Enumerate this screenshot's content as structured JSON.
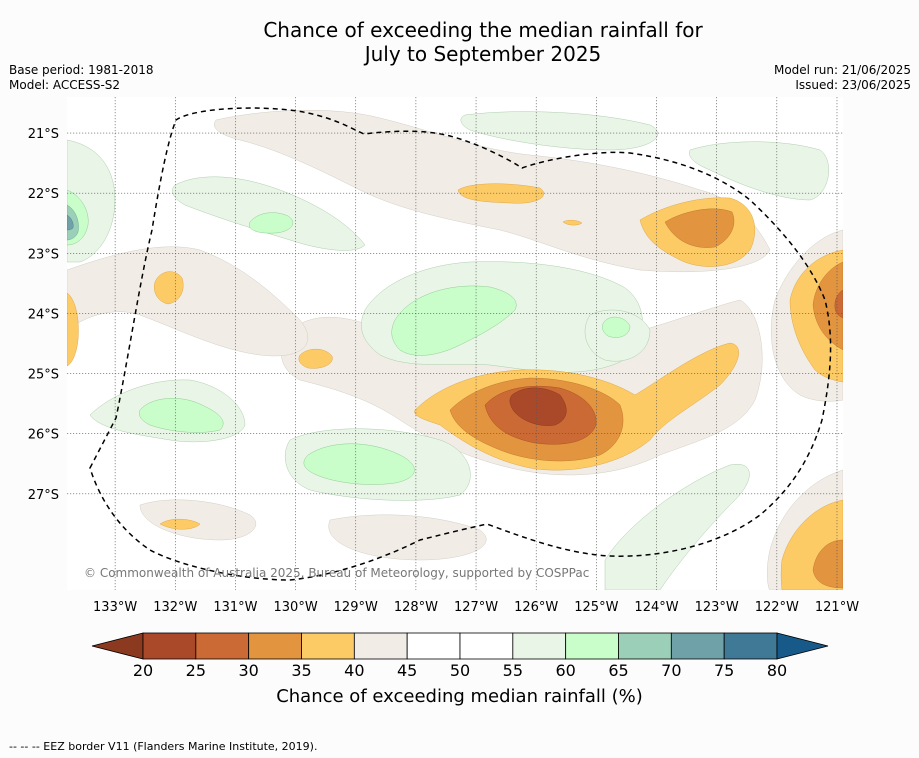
{
  "header": {
    "title_line1": "Chance of exceeding the median rainfall for",
    "title_line2": "July to September 2025",
    "base_period": "Base period: 1981-2018",
    "model": "Model: ACCESS-S2",
    "model_run": "Model run: 21/06/2025",
    "issued": "Issued: 23/06/2025"
  },
  "map": {
    "copyright": "© Commonwealth of Australia 2025, Bureau of Meteorology, supported by COSPPac",
    "eez_note": "--  --  -- EEZ border V11 (Flanders Marine Institute, 2019)."
  },
  "chart_data": {
    "type": "heatmap",
    "title": "Chance of exceeding the median rainfall for July to September 2025",
    "x_axis": {
      "ticks": [
        "133°W",
        "132°W",
        "131°W",
        "130°W",
        "129°W",
        "128°W",
        "127°W",
        "126°W",
        "125°W",
        "124°W",
        "123°W",
        "122°W",
        "121°W"
      ],
      "values": [
        -133,
        -132,
        -131,
        -130,
        -129,
        -128,
        -127,
        -126,
        -125,
        -124,
        -123,
        -122,
        -121
      ],
      "range": [
        -133.8,
        -120.9
      ]
    },
    "y_axis": {
      "ticks": [
        "21°S",
        "22°S",
        "23°S",
        "24°S",
        "25°S",
        "26°S",
        "27°S"
      ],
      "values": [
        -21,
        -22,
        -23,
        -24,
        -25,
        -26,
        -27
      ],
      "range": [
        -28.6,
        -20.4
      ]
    },
    "grid": true,
    "colorbar": {
      "label": "Chance of exceeding median rainfall (%)",
      "ticks": [
        20,
        25,
        30,
        35,
        40,
        45,
        50,
        55,
        60,
        65,
        70,
        75,
        80
      ],
      "colors": [
        "#a9492a",
        "#cb6a35",
        "#e2943f",
        "#fdcb66",
        "#f1ede6",
        "#ffffff",
        "#ffffff",
        "#e9f5e6",
        "#c9fdca",
        "#9bcfb8",
        "#6fa2a8",
        "#3f7996"
      ],
      "under_color": "#8b3a1f",
      "over_color": "#175a8a",
      "extend": "both"
    },
    "regions": [
      {
        "name": "central low",
        "lon": -126.2,
        "lat": -25.6,
        "min_value": 22
      },
      {
        "name": "east low",
        "lon": -121.1,
        "lat": -24.0,
        "min_value": 32
      },
      {
        "name": "northeast low",
        "lon": -123.6,
        "lat": -22.5,
        "min_value": 32
      },
      {
        "name": "southeast low",
        "lon": -121.2,
        "lat": -28.2,
        "min_value": 33
      },
      {
        "name": "central high",
        "lon": -127.8,
        "lat": -24.1,
        "max_value": 62
      },
      {
        "name": "west high",
        "lon": -133.7,
        "lat": -22.5,
        "max_value": 72
      },
      {
        "name": "south high",
        "lon": -128.9,
        "lat": -26.8,
        "max_value": 62
      },
      {
        "name": "west-central high",
        "lon": -131.6,
        "lat": -25.7,
        "max_value": 62
      }
    ]
  }
}
